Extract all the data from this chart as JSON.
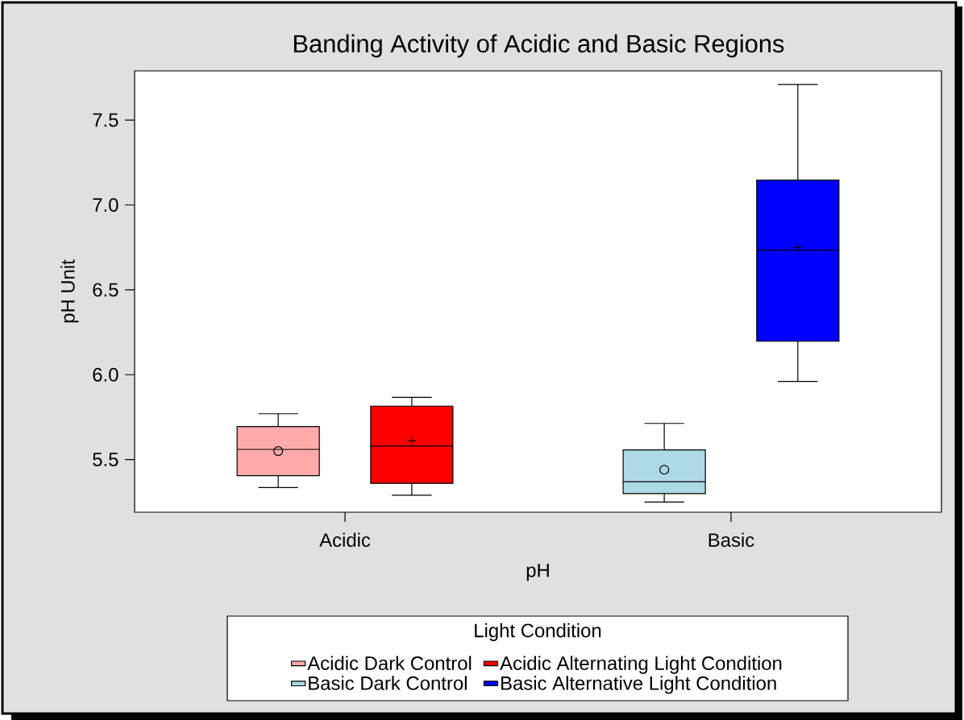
{
  "chart_data": {
    "type": "box",
    "title": "Banding Activity of Acidic and Basic Regions",
    "xlabel": "pH",
    "ylabel": "pH Unit",
    "legend_title": "Light Condition",
    "categories": [
      "Acidic",
      "Basic"
    ],
    "series": [
      {
        "name": "Acidic Dark Control",
        "color": "#ffaaaa",
        "marker": "circle",
        "boxes": [
          {
            "low": 5.335,
            "q1": 5.405,
            "median": 5.56,
            "q3": 5.695,
            "high": 5.77,
            "mean": 5.55
          },
          null
        ]
      },
      {
        "name": "Acidic Alternating Light Condition",
        "color": "#ff0000",
        "marker": "cross",
        "boxes": [
          {
            "low": 5.29,
            "q1": 5.36,
            "median": 5.58,
            "q3": 5.815,
            "high": 5.867,
            "mean": 5.61
          },
          null
        ]
      },
      {
        "name": "Basic Dark Control",
        "color": "#add8e6",
        "marker": "circle",
        "boxes": [
          null,
          {
            "low": 5.25,
            "q1": 5.3,
            "median": 5.37,
            "q3": 5.557,
            "high": 5.713,
            "mean": 5.44
          }
        ]
      },
      {
        "name": "Basic Alternative Light Condition",
        "color": "#0000ff",
        "marker": "cross",
        "boxes": [
          null,
          {
            "low": 5.96,
            "q1": 6.197,
            "median": 6.734,
            "q3": 7.146,
            "high": 7.71,
            "mean": 6.749
          }
        ]
      }
    ],
    "ylim": [
      5.19,
      7.79
    ],
    "yticks": [
      5.5,
      {
        "value": 6,
        "label": "6.0"
      },
      6.5,
      {
        "value": 7,
        "label": "7.0"
      },
      7.5
    ],
    "legend": "bottom",
    "grid": false
  }
}
